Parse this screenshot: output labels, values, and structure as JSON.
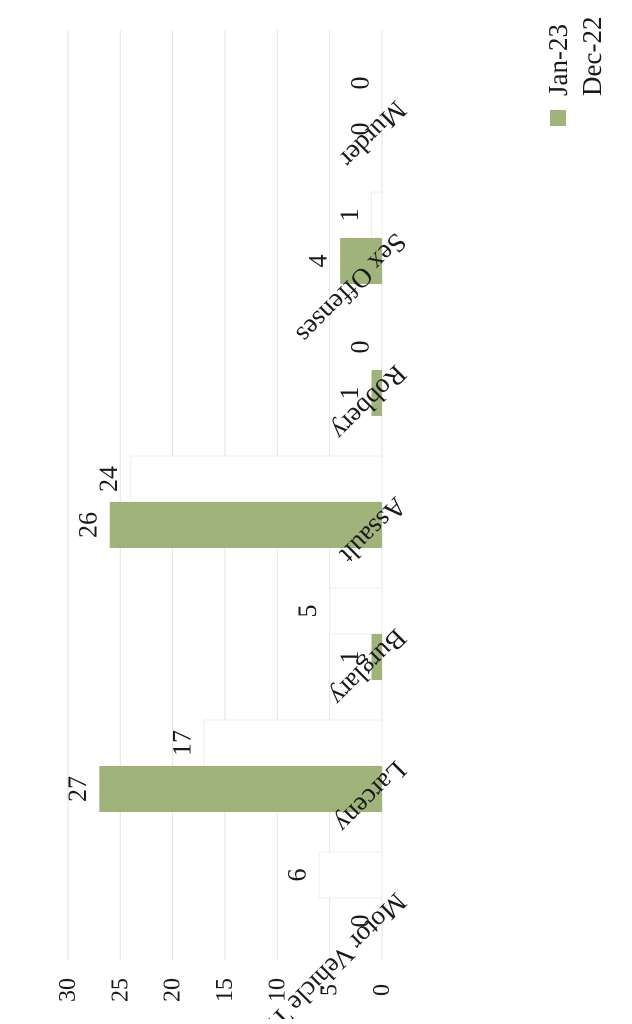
{
  "chart_data": {
    "type": "bar",
    "orientation": "rotated-90-clockwise",
    "title": "",
    "xlabel": "",
    "ylabel": "",
    "categories": [
      "Murder",
      "Sex Offenses",
      "Robbery",
      "Assault",
      "Burglary",
      "Larceny",
      "Motor Vehicle Theft"
    ],
    "ylim": [
      0,
      30
    ],
    "yticks": [
      "0",
      "5",
      "10",
      "15",
      "20",
      "25",
      "30"
    ],
    "grid": true,
    "legend_position": "top-right",
    "series": [
      {
        "name": "Dec-22",
        "values": [
          0,
          1,
          0,
          24,
          5,
          17,
          6
        ],
        "color": "#ffffff"
      },
      {
        "name": "Jan-23",
        "values": [
          0,
          4,
          1,
          26,
          1,
          27,
          0
        ],
        "color": "#9fb37a"
      }
    ]
  }
}
